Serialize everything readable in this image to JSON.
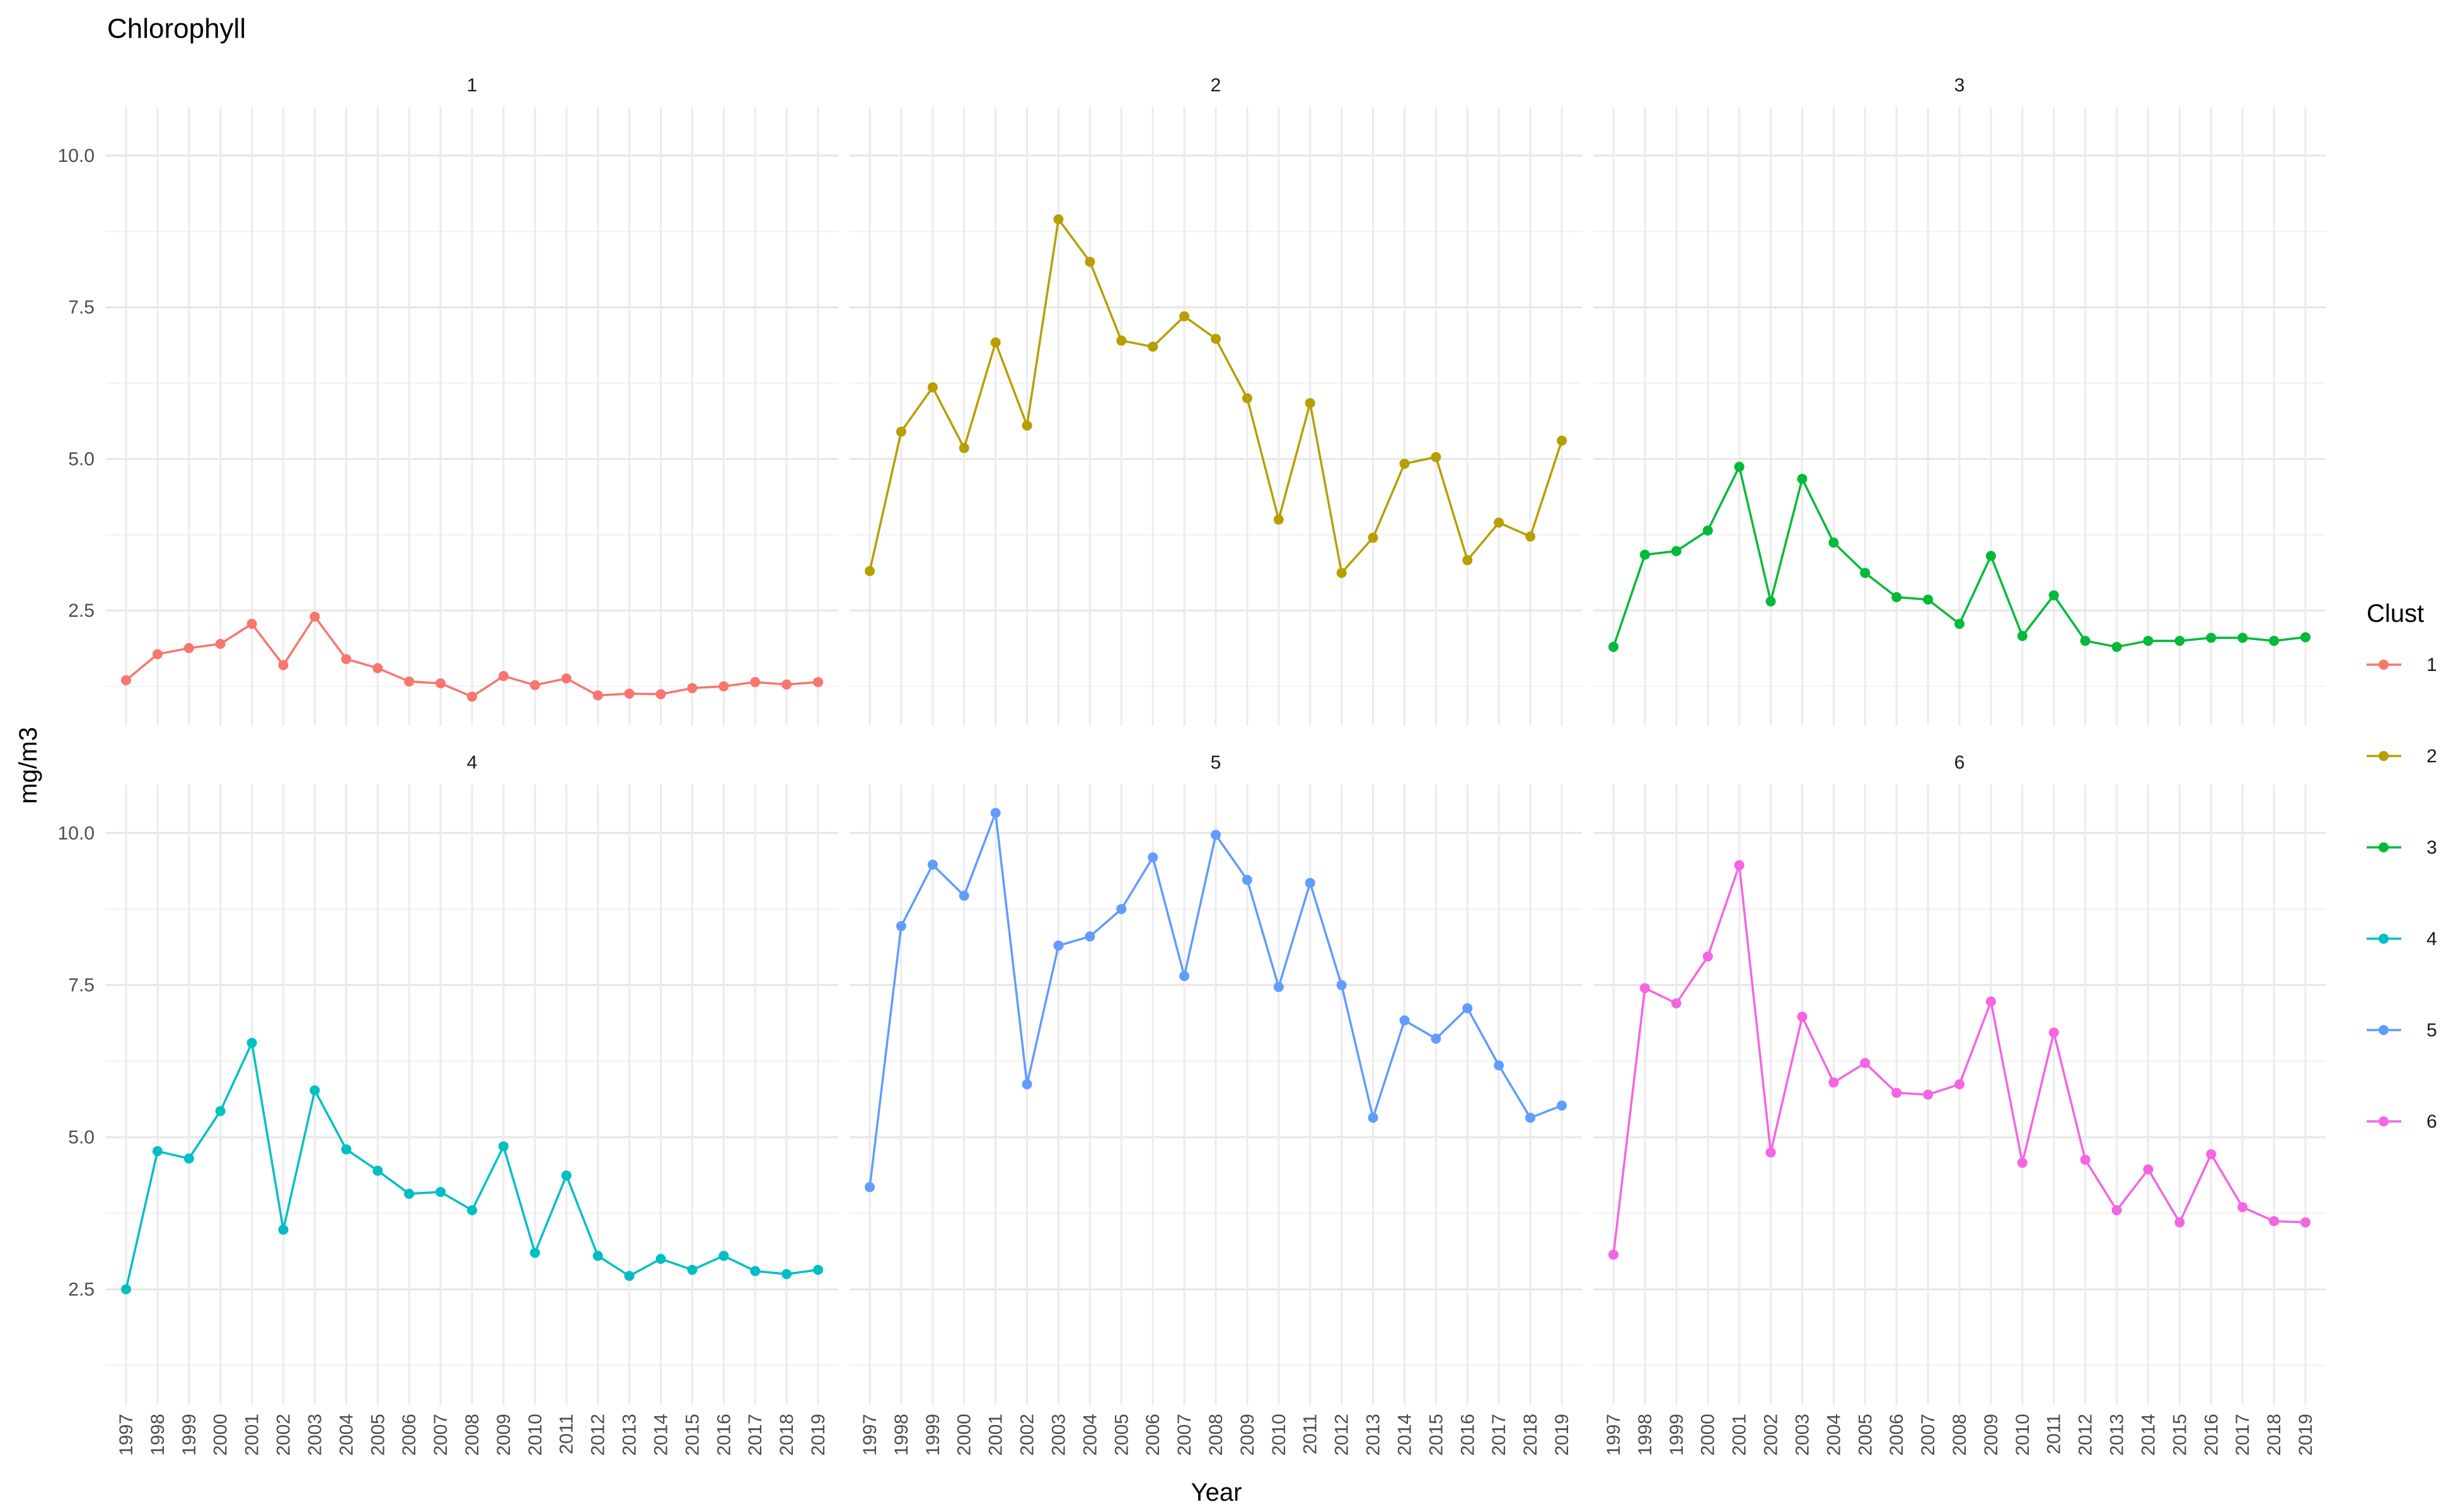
{
  "chart_data": {
    "type": "line",
    "title": "Chlorophyll",
    "xlabel": "Year",
    "ylabel": "mg/m3",
    "ylim": [
      0.6,
      10.8
    ],
    "yticks": [
      "2.5",
      "5.0",
      "7.5",
      "10.0"
    ],
    "x": [
      "1997",
      "1998",
      "1999",
      "2000",
      "2001",
      "2002",
      "2003",
      "2004",
      "2005",
      "2006",
      "2007",
      "2008",
      "2009",
      "2010",
      "2011",
      "2012",
      "2013",
      "2014",
      "2015",
      "2016",
      "2017",
      "2018",
      "2019"
    ],
    "grid": true,
    "legend": {
      "title": "Clust",
      "placement": "right"
    },
    "series": [
      {
        "name": "1",
        "panel": "1",
        "color": "#F8766D",
        "values": [
          1.35,
          1.78,
          1.88,
          1.95,
          2.28,
          1.6,
          2.4,
          1.7,
          1.55,
          1.33,
          1.3,
          1.08,
          1.42,
          1.27,
          1.38,
          1.1,
          1.13,
          1.12,
          1.22,
          1.25,
          1.32,
          1.28,
          1.32
        ]
      },
      {
        "name": "2",
        "panel": "2",
        "color": "#B79F00",
        "values": [
          3.15,
          5.45,
          6.18,
          5.18,
          6.92,
          5.55,
          8.95,
          8.25,
          6.95,
          6.85,
          7.35,
          6.98,
          6.0,
          4.0,
          5.92,
          3.12,
          3.7,
          4.92,
          5.03,
          3.33,
          3.95,
          3.72,
          5.3
        ]
      },
      {
        "name": "3",
        "panel": "3",
        "color": "#00BA38",
        "values": [
          1.9,
          3.42,
          3.48,
          3.82,
          4.87,
          2.65,
          4.67,
          3.62,
          3.12,
          2.72,
          2.68,
          2.28,
          3.4,
          2.08,
          2.75,
          2.0,
          1.9,
          2.0,
          2.0,
          2.05,
          2.05,
          2.0,
          2.06
        ]
      },
      {
        "name": "4",
        "panel": "4",
        "color": "#00BFC4",
        "values": [
          2.5,
          4.77,
          4.65,
          5.43,
          6.55,
          3.48,
          5.77,
          4.8,
          4.45,
          4.07,
          4.1,
          3.8,
          4.85,
          3.1,
          4.37,
          3.05,
          2.72,
          3.0,
          2.82,
          3.05,
          2.8,
          2.75,
          2.82
        ]
      },
      {
        "name": "5",
        "panel": "5",
        "color": "#619CFF",
        "values": [
          4.18,
          8.47,
          9.48,
          8.97,
          10.33,
          5.87,
          8.15,
          8.3,
          8.75,
          9.6,
          7.65,
          9.97,
          9.23,
          7.47,
          9.18,
          7.5,
          5.32,
          6.92,
          6.62,
          7.12,
          6.18,
          5.32,
          5.52
        ]
      },
      {
        "name": "6",
        "panel": "6",
        "color": "#F564E3",
        "values": [
          3.07,
          7.45,
          7.2,
          7.97,
          9.47,
          4.75,
          6.98,
          5.9,
          6.22,
          5.73,
          5.7,
          5.87,
          7.23,
          4.58,
          6.72,
          4.63,
          3.8,
          4.47,
          3.6,
          4.72,
          3.85,
          3.62,
          3.6
        ]
      }
    ]
  }
}
